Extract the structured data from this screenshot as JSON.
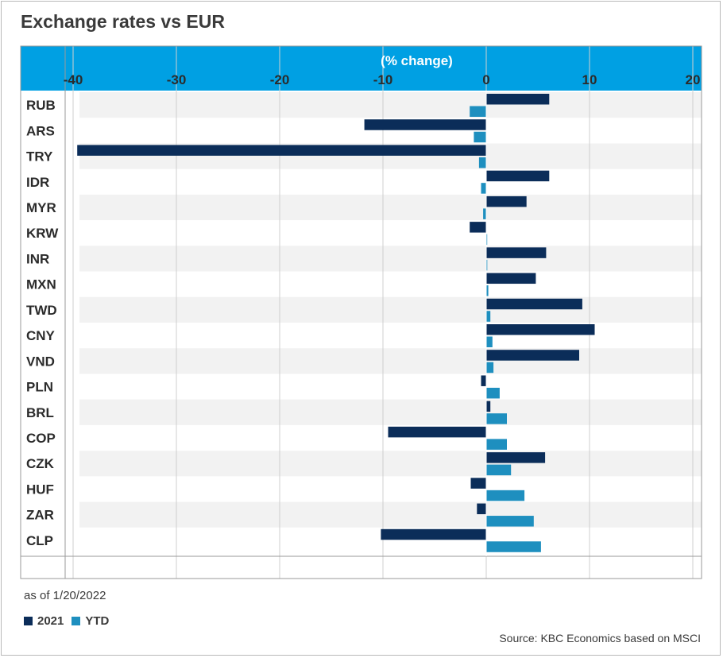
{
  "title": "Exchange rates vs EUR",
  "note": "as of 1/20/2022",
  "source": "Source: KBC Economics based on MSCI",
  "colors": {
    "series_2021": "#0b2d59",
    "series_ytd": "#1e8fbf",
    "header": "#00a0e3",
    "band": "#f2f2f2"
  },
  "legend": [
    {
      "label": "2021",
      "color": "#0b2d59"
    },
    {
      "label": "YTD",
      "color": "#1e8fbf"
    }
  ],
  "chart_data": {
    "type": "bar",
    "orientation": "horizontal",
    "xlabel": "(% change)",
    "xlim": [
      -41,
      20
    ],
    "xticks": [
      -40,
      -30,
      -20,
      -10,
      0,
      10,
      20
    ],
    "xtick_labels": [
      "-40",
      "-30",
      "-20",
      "-10",
      "0",
      "10",
      "20"
    ],
    "categories": [
      "RUB",
      "ARS",
      "TRY",
      "IDR",
      "MYR",
      "KRW",
      "INR",
      "MXN",
      "TWD",
      "CNY",
      "VND",
      "PLN",
      "BRL",
      "COP",
      "CZK",
      "HUF",
      "ZAR",
      "CLP"
    ],
    "series": [
      {
        "name": "2021",
        "values": [
          6.1,
          -11.8,
          -39.6,
          6.1,
          3.9,
          -1.6,
          5.8,
          4.8,
          9.3,
          10.5,
          9.0,
          -0.5,
          0.4,
          -9.5,
          5.7,
          -1.5,
          -0.9,
          -10.2
        ]
      },
      {
        "name": "YTD",
        "values": [
          -1.6,
          -1.2,
          -0.7,
          -0.5,
          -0.3,
          0.0,
          0.1,
          0.2,
          0.4,
          0.6,
          0.7,
          1.3,
          2.0,
          2.0,
          2.4,
          3.7,
          4.6,
          5.3
        ]
      }
    ],
    "grid": true,
    "legend_position": "bottom-left"
  }
}
